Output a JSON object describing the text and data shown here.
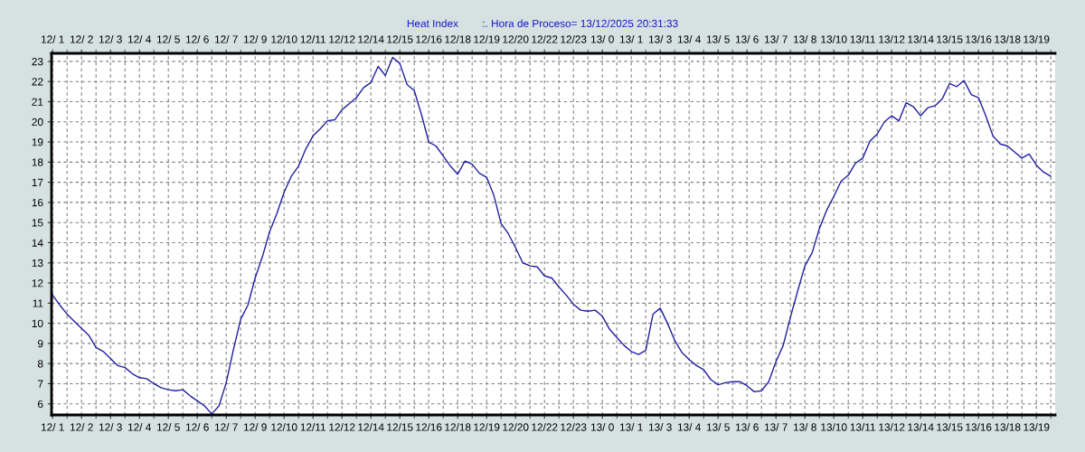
{
  "chart_data": {
    "type": "line",
    "title": "Heat Index        :. Hora de Proceso= 13/12/2025 20:31:33",
    "categories": [
      "12/ 1",
      null,
      null,
      null,
      "12/ 2",
      null,
      null,
      null,
      "12/ 3",
      null,
      null,
      null,
      "12/ 4",
      null,
      null,
      null,
      "12/ 5",
      null,
      null,
      null,
      "12/ 6",
      null,
      null,
      null,
      "12/ 7",
      null,
      null,
      null,
      "12/ 9",
      null,
      null,
      null,
      "12/10",
      null,
      null,
      null,
      "12/11",
      null,
      null,
      null,
      "12/12",
      null,
      null,
      null,
      "12/14",
      null,
      null,
      null,
      "12/15",
      null,
      null,
      null,
      "12/16",
      null,
      null,
      null,
      "12/18",
      null,
      null,
      null,
      "12/19",
      null,
      null,
      null,
      "12/20",
      null,
      null,
      null,
      "12/22",
      null,
      null,
      null,
      "12/23",
      null,
      null,
      null,
      "13/ 0",
      null,
      null,
      null,
      "13/ 1",
      null,
      null,
      null,
      "13/ 3",
      null,
      null,
      null,
      "13/ 4",
      null,
      null,
      null,
      "13/ 5",
      null,
      null,
      null,
      "13/ 6",
      null,
      null,
      null,
      "13/ 7",
      null,
      null,
      null,
      "13/ 8",
      null,
      null,
      null,
      "13/10",
      null,
      null,
      null,
      "13/11",
      null,
      null,
      null,
      "13/12",
      null,
      null,
      null,
      "13/14",
      null,
      null,
      null,
      "13/15",
      null,
      null,
      null,
      "13/16",
      null,
      null,
      null,
      "13/18",
      null,
      null,
      null,
      "13/19",
      null,
      null
    ],
    "series": [
      {
        "color": "#2020a0",
        "values": [
          11.4,
          10.9,
          10.45,
          10.1,
          9.75,
          9.4,
          8.8,
          8.6,
          8.25,
          7.9,
          7.8,
          7.5,
          7.3,
          7.25,
          7.0,
          6.8,
          6.7,
          6.65,
          6.7,
          6.4,
          6.15,
          5.9,
          5.5,
          5.9,
          7.05,
          8.7,
          10.2,
          10.9,
          12.25,
          13.3,
          14.55,
          15.45,
          16.5,
          17.3,
          17.8,
          18.65,
          19.3,
          19.65,
          20.05,
          20.1,
          20.6,
          20.9,
          21.2,
          21.7,
          21.95,
          22.75,
          22.3,
          23.2,
          22.9,
          21.85,
          21.55,
          20.35,
          19.0,
          18.8,
          18.3,
          17.8,
          17.4,
          18.05,
          17.9,
          17.45,
          17.25,
          16.35,
          14.95,
          14.45,
          13.75,
          13.0,
          12.85,
          12.8,
          12.35,
          12.25,
          11.8,
          11.4,
          10.95,
          10.65,
          10.6,
          10.65,
          10.35,
          9.7,
          9.3,
          8.9,
          8.6,
          8.45,
          8.65,
          10.45,
          10.75,
          10.0,
          9.15,
          8.55,
          8.2,
          7.9,
          7.7,
          7.2,
          6.95,
          7.05,
          7.1,
          7.1,
          6.9,
          6.6,
          6.65,
          7.1,
          8.1,
          8.9,
          10.3,
          11.6,
          12.85,
          13.5,
          14.7,
          15.6,
          16.3,
          17.05,
          17.35,
          17.95,
          18.2,
          19.05,
          19.4,
          20.0,
          20.3,
          20.05,
          20.95,
          20.75,
          20.3,
          20.7,
          20.8,
          21.15,
          21.9,
          21.75,
          22.05,
          21.35,
          21.2,
          20.3,
          19.3,
          18.9,
          18.8,
          18.5,
          18.2,
          18.4,
          17.85,
          17.5,
          17.3
        ]
      }
    ],
    "ylim": [
      5.45,
      23.4
    ],
    "yticks": [
      6,
      7,
      8,
      9,
      10,
      11,
      12,
      13,
      14,
      15,
      16,
      17,
      18,
      19,
      20,
      21,
      22,
      23
    ],
    "grid": true,
    "line_style": "solid",
    "marker": "none"
  }
}
